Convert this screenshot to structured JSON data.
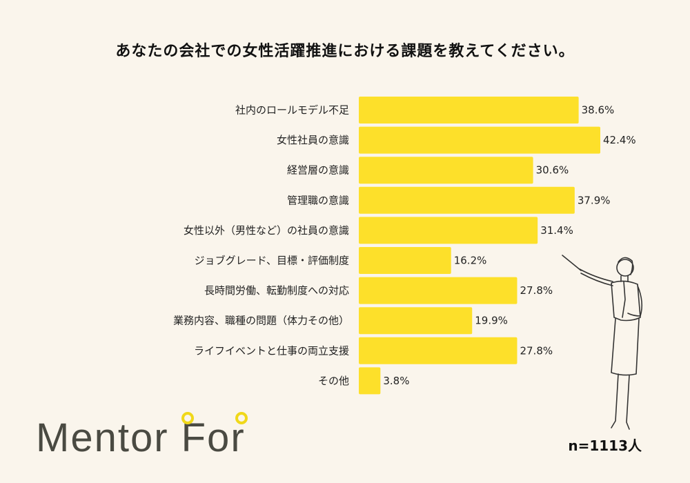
{
  "title": "あなたの会社での女性活躍推進における課題を教えてください。",
  "sample_size": "n=1113人",
  "logo": {
    "text": "Mentor For",
    "color": "#4a4a42",
    "accent": "#f0d81a"
  },
  "colors": {
    "bar": "#fde02a",
    "background": "#faf5ec"
  },
  "chart_data": {
    "type": "bar",
    "orientation": "horizontal",
    "title": "あなたの会社での女性活躍推進における課題を教えてください。",
    "categories": [
      "社内のロールモデル不足",
      "女性社員の意識",
      "経営層の意識",
      "管理職の意識",
      "女性以外（男性など）の社員の意識",
      "ジョブグレード、目標・評価制度",
      "長時間労働、転勤制度への対応",
      "業務内容、職種の問題（体力その他）",
      "ライフイベントと仕事の両立支援",
      "その他"
    ],
    "values": [
      38.6,
      42.4,
      30.6,
      37.9,
      31.4,
      16.2,
      27.8,
      19.9,
      27.8,
      3.8
    ],
    "value_labels": [
      "38.6%",
      "42.4%",
      "30.6%",
      "37.9%",
      "31.4%",
      "16.2%",
      "27.8%",
      "19.9%",
      "27.8%",
      "3.8%"
    ],
    "unit": "%",
    "xlim": [
      0,
      42.4
    ],
    "grid": false,
    "legend": "none"
  }
}
